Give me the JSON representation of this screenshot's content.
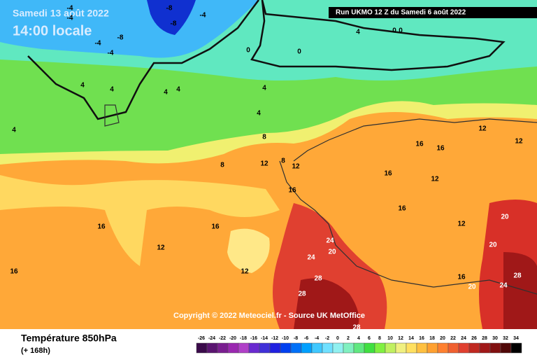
{
  "header": {
    "date": "Samedi 13 août 2022",
    "time": "14:00 locale",
    "run": "Run UKMO 12 Z du Samedi 6 août 2022"
  },
  "map": {
    "copyright": "Copyright © 2022 Meteociel.fr - Source UK MetOffice",
    "contour_labels": [
      -4,
      -4,
      -4,
      -8,
      -8,
      -8,
      -4,
      -4,
      0,
      0,
      0,
      0,
      4,
      4,
      4,
      4,
      4,
      4,
      4,
      4,
      8,
      8,
      8,
      12,
      12,
      12,
      12,
      12,
      12,
      12,
      12,
      16,
      16,
      16,
      16,
      16,
      16,
      16,
      16,
      16,
      20,
      20,
      20,
      20,
      24,
      24,
      24,
      28,
      28,
      28,
      28
    ]
  },
  "footer": {
    "title": "Température 850hPa",
    "lead": "(+ 168h)"
  },
  "colorbar": {
    "ticks": [
      -26,
      -24,
      -22,
      -20,
      -18,
      -16,
      -14,
      -12,
      -10,
      -8,
      -6,
      -4,
      -2,
      0,
      2,
      4,
      6,
      8,
      10,
      12,
      14,
      16,
      18,
      20,
      22,
      24,
      26,
      28,
      30,
      32,
      34
    ],
    "colors": [
      "#3a0a4a",
      "#5a1470",
      "#7a1e90",
      "#9a28b0",
      "#b040c8",
      "#6a2ad0",
      "#4030d8",
      "#2020e0",
      "#0040f0",
      "#0070f8",
      "#00a0ff",
      "#40c8ff",
      "#70e0ff",
      "#90f0f0",
      "#80f0c0",
      "#60e880",
      "#40e040",
      "#80f040",
      "#c0f060",
      "#f0f080",
      "#ffe060",
      "#ffc040",
      "#ffa030",
      "#ff8030",
      "#f06030",
      "#e04030",
      "#c02820",
      "#a01818",
      "#801010",
      "#500808",
      "#000000"
    ]
  }
}
